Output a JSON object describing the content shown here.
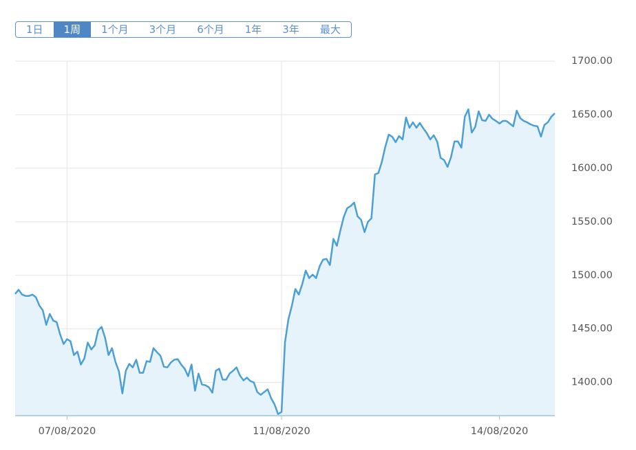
{
  "range_buttons": {
    "options": [
      "1日",
      "1周",
      "1个月",
      "3个月",
      "6个月",
      "1年",
      "3年",
      "最大"
    ],
    "selected": 1
  },
  "chart_data": {
    "type": "area",
    "color": "#4a9fd4",
    "fill": "#e6f3fb",
    "grid": true,
    "y_axis_side": "right",
    "ylim": [
      1369,
      1700
    ],
    "yticks": [
      {
        "value": 1400,
        "label": "1400.00"
      },
      {
        "value": 1450,
        "label": "1450.00"
      },
      {
        "value": 1500,
        "label": "1500.00"
      },
      {
        "value": 1550,
        "label": "1550.00"
      },
      {
        "value": 1600,
        "label": "1600.00"
      },
      {
        "value": 1650,
        "label": "1650.00"
      },
      {
        "value": 1700,
        "label": "1700.00"
      }
    ],
    "categories": [
      null,
      null,
      null,
      null,
      null,
      null,
      null,
      null,
      null,
      null,
      null,
      null,
      null,
      null,
      null,
      "07/08/2020",
      null,
      null,
      null,
      null,
      null,
      null,
      null,
      null,
      null,
      null,
      null,
      null,
      null,
      null,
      null,
      null,
      null,
      null,
      null,
      null,
      null,
      null,
      null,
      null,
      null,
      null,
      null,
      null,
      null,
      null,
      null,
      null,
      null,
      null,
      null,
      null,
      null,
      null,
      null,
      null,
      null,
      null,
      null,
      null,
      null,
      null,
      null,
      null,
      null,
      null,
      null,
      null,
      null,
      null,
      null,
      null,
      null,
      null,
      null,
      null,
      null,
      "11/08/2020",
      null,
      null,
      null,
      null,
      null,
      null,
      null,
      null,
      null,
      null,
      null,
      null,
      null,
      null,
      null,
      null,
      null,
      null,
      null,
      null,
      null,
      null,
      null,
      null,
      null,
      null,
      null,
      null,
      null,
      null,
      null,
      null,
      null,
      null,
      null,
      null,
      null,
      null,
      null,
      null,
      null,
      null,
      null,
      null,
      null,
      null,
      null,
      null,
      null,
      null,
      null,
      null,
      null,
      null,
      null,
      null,
      null,
      null,
      null,
      null,
      null,
      null,
      "14/08/2020",
      null,
      null,
      null,
      null,
      null,
      null,
      null,
      null,
      null,
      null,
      null,
      null,
      null,
      null,
      null,
      null
    ],
    "values": [
      1482.7,
      1486.5,
      1482,
      1480.8,
      1480.8,
      1482,
      1479.5,
      1471.8,
      1467.3,
      1453.8,
      1464,
      1457.7,
      1456.4,
      1445,
      1435.9,
      1440.4,
      1438.5,
      1425.6,
      1428.8,
      1416.7,
      1422.4,
      1437.2,
      1430.8,
      1434.6,
      1448.7,
      1451.9,
      1441.7,
      1425.6,
      1432,
      1419.2,
      1410.3,
      1389.7,
      1410.9,
      1417.3,
      1414.1,
      1421.2,
      1409,
      1409,
      1419.9,
      1419.2,
      1432,
      1428.2,
      1425,
      1414.7,
      1414.1,
      1418.6,
      1421.2,
      1421.8,
      1416.7,
      1412.8,
      1405.8,
      1416.7,
      1392.3,
      1408.3,
      1398.1,
      1397.4,
      1395.5,
      1390.4,
      1410.9,
      1412.8,
      1402.6,
      1402.6,
      1408.3,
      1410.9,
      1414.1,
      1406.4,
      1401.9,
      1404.5,
      1401.3,
      1400,
      1391,
      1388.5,
      1391,
      1393.6,
      1385.3,
      1379.5,
      1370.5,
      1372.4,
      1437.2,
      1459,
      1471.8,
      1487.2,
      1482,
      1491.7,
      1504.5,
      1497.4,
      1500.6,
      1497.4,
      1508.3,
      1514.7,
      1515.4,
      1509.6,
      1534,
      1527.6,
      1541.7,
      1554.5,
      1562.8,
      1564.7,
      1567.9,
      1555.1,
      1551.9,
      1540.4,
      1550,
      1553.2,
      1594.2,
      1595.5,
      1605.8,
      1619.9,
      1631.4,
      1629.5,
      1624.4,
      1630.1,
      1626.9,
      1647.4,
      1637.8,
      1642.9,
      1637.8,
      1642.3,
      1637.2,
      1632.7,
      1626.9,
      1630.8,
      1625,
      1609.6,
      1607.7,
      1601.3,
      1610.3,
      1625,
      1625,
      1619.2,
      1648.1,
      1655.1,
      1633.3,
      1638.5,
      1653.2,
      1644.9,
      1644.2,
      1650,
      1646.2,
      1644.2,
      1641.7,
      1644.2,
      1644.2,
      1641.7,
      1639.1,
      1653.8,
      1646.8,
      1644.2,
      1642.9,
      1641,
      1639.7,
      1639.1,
      1629.5,
      1640.4,
      1642.9,
      1648.1,
      1651.3
    ]
  }
}
